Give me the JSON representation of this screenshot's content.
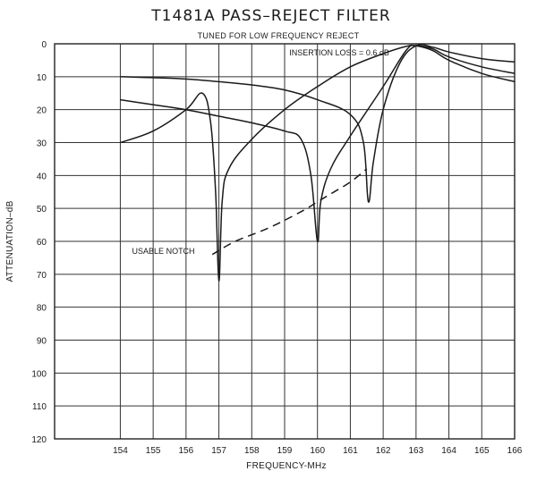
{
  "chart_data": {
    "type": "line",
    "title": "T1481A PASS–REJECT FILTER",
    "subtitle": "TUNED FOR LOW FREQUENCY REJECT",
    "xlabel": "FREQUENCY-MHz",
    "ylabel": "ATTENUATION–dB",
    "xlim": [
      152,
      166
    ],
    "ylim": [
      0,
      120
    ],
    "y_inverted": true,
    "x_ticks": [
      154,
      155,
      156,
      157,
      158,
      159,
      160,
      161,
      162,
      163,
      164,
      165,
      166
    ],
    "y_ticks": [
      0,
      10,
      20,
      30,
      40,
      50,
      60,
      70,
      80,
      90,
      100,
      110,
      120
    ],
    "grid": true,
    "annotations": [
      {
        "text": "INSERTION LOSS = 0.6 dB",
        "x": 163,
        "y": 0.6
      },
      {
        "text": "USABLE NOTCH",
        "x": 157,
        "y": 63
      }
    ],
    "series": [
      {
        "style": "solid",
        "points": [
          [
            154,
            30
          ],
          [
            155,
            26.5
          ],
          [
            156,
            20
          ],
          [
            156.5,
            15
          ],
          [
            156.75,
            24
          ],
          [
            156.9,
            45
          ],
          [
            157,
            72
          ],
          [
            157.1,
            48
          ],
          [
            157.3,
            38
          ],
          [
            158,
            29
          ],
          [
            159,
            20
          ],
          [
            160,
            13
          ],
          [
            161,
            7
          ],
          [
            162,
            3
          ],
          [
            162.7,
            0.8
          ],
          [
            163,
            0.6
          ],
          [
            163.5,
            2
          ],
          [
            164,
            5
          ],
          [
            165,
            9
          ],
          [
            166,
            11.5
          ]
        ]
      },
      {
        "style": "solid",
        "points": [
          [
            154,
            17
          ],
          [
            155,
            18.5
          ],
          [
            156,
            20
          ],
          [
            157,
            22
          ],
          [
            158,
            24
          ],
          [
            159,
            26.5
          ],
          [
            159.5,
            29
          ],
          [
            159.8,
            40
          ],
          [
            160,
            60
          ],
          [
            160.1,
            48
          ],
          [
            160.4,
            38
          ],
          [
            161,
            28
          ],
          [
            162,
            13
          ],
          [
            162.7,
            2
          ],
          [
            163,
            0.6
          ],
          [
            163.5,
            1.5
          ],
          [
            164,
            4
          ],
          [
            165,
            7
          ],
          [
            166,
            9
          ]
        ]
      },
      {
        "style": "solid",
        "points": [
          [
            154,
            10
          ],
          [
            155,
            10.3
          ],
          [
            156,
            10.7
          ],
          [
            157,
            11.5
          ],
          [
            158,
            12.5
          ],
          [
            159,
            14
          ],
          [
            160,
            17
          ],
          [
            161,
            21.5
          ],
          [
            161.4,
            30
          ],
          [
            161.55,
            48
          ],
          [
            161.7,
            36
          ],
          [
            162,
            20
          ],
          [
            162.5,
            6
          ],
          [
            163,
            0.6
          ],
          [
            163.5,
            1
          ],
          [
            164,
            2.5
          ],
          [
            165,
            4.5
          ],
          [
            166,
            5.5
          ]
        ]
      },
      {
        "style": "dashed",
        "label": "USABLE NOTCH",
        "points": [
          [
            156.8,
            64
          ],
          [
            157.5,
            60
          ],
          [
            158.5,
            56
          ],
          [
            159.5,
            51
          ],
          [
            160,
            48
          ],
          [
            160.5,
            45
          ],
          [
            161,
            42
          ],
          [
            161.5,
            38
          ]
        ]
      }
    ]
  }
}
